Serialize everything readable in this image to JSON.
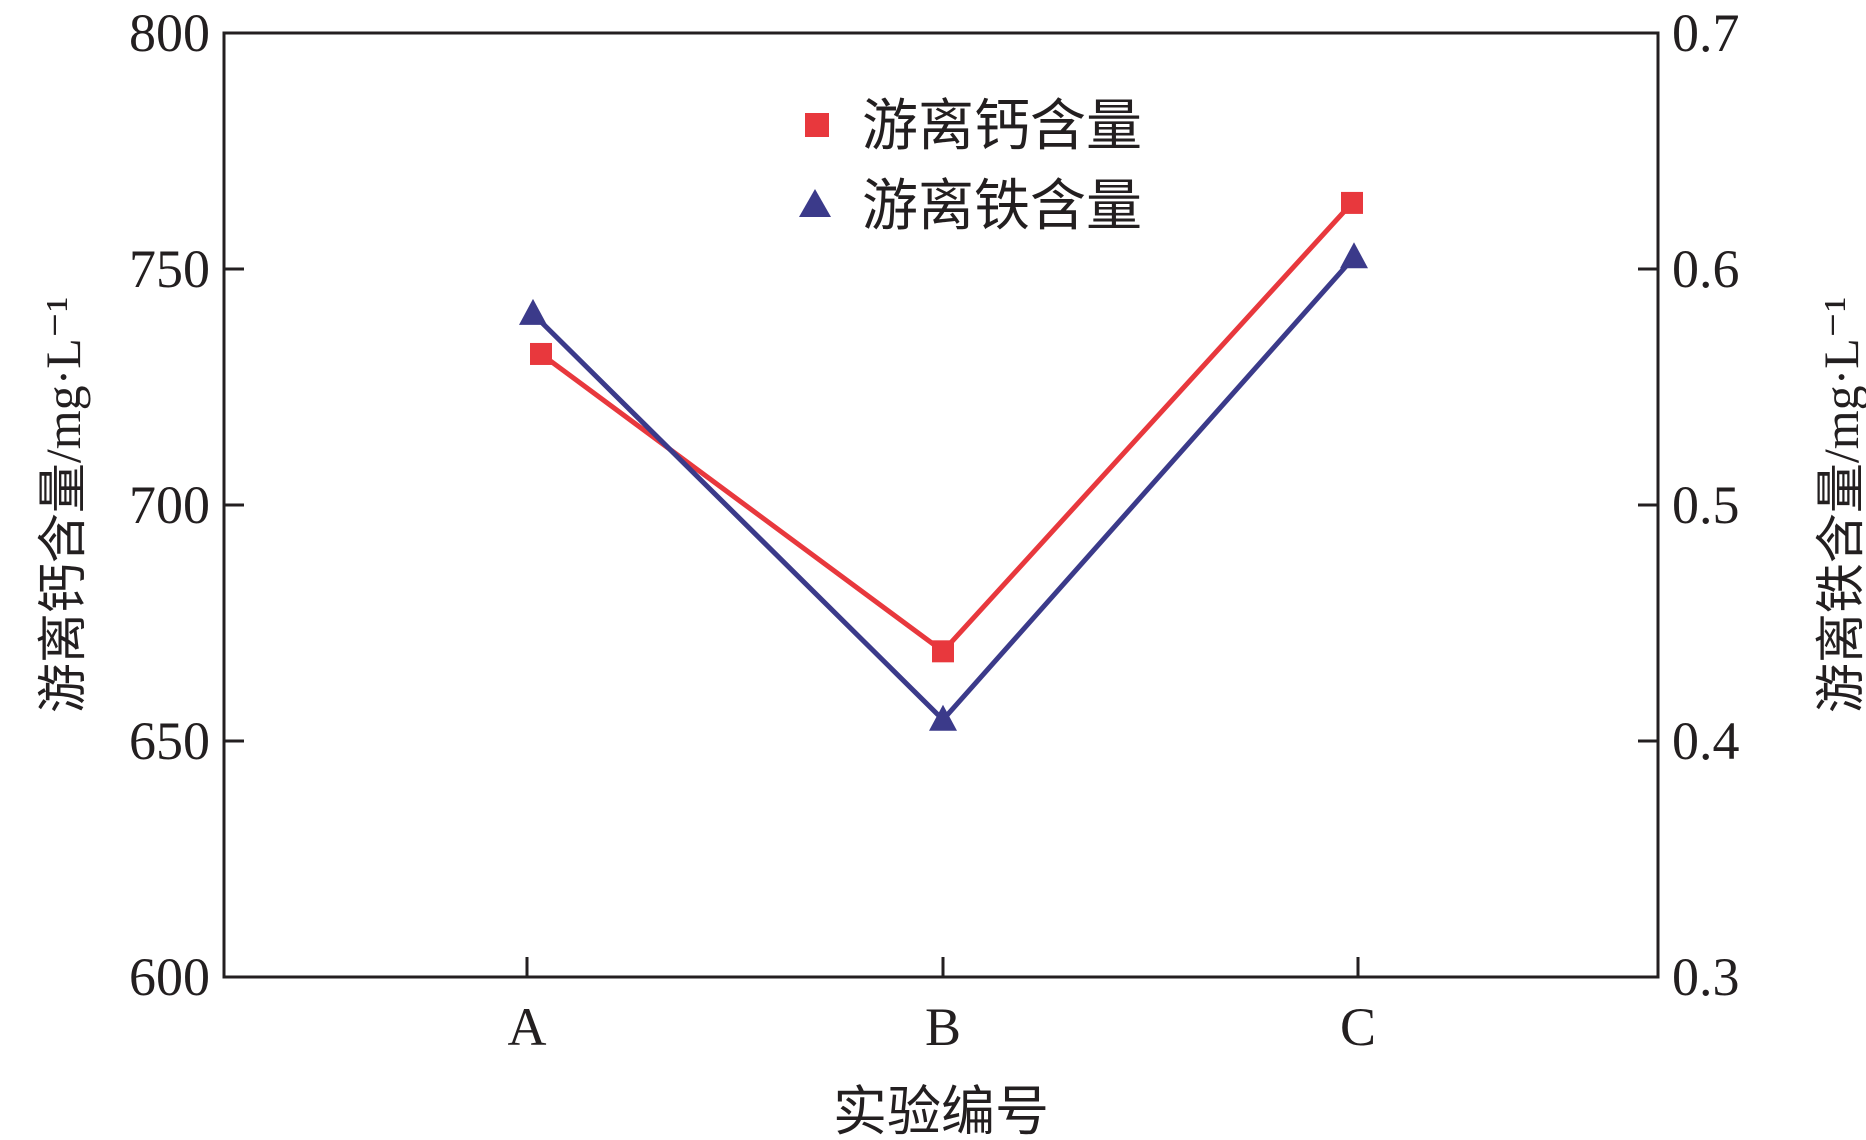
{
  "chart_data": {
    "type": "line",
    "categories": [
      "A",
      "B",
      "C"
    ],
    "xlabel": "实验编号",
    "ylabel_left": "游离钙含量/mg·L⁻¹",
    "ylabel_right": "游离铁含量/mg·L⁻¹",
    "ylim_left": [
      600,
      800
    ],
    "yticks_left": [
      "600",
      "650",
      "700",
      "750",
      "800"
    ],
    "ylim_right": [
      0.3,
      0.7
    ],
    "yticks_right": [
      "0.3",
      "0.4",
      "0.5",
      "0.6",
      "0.7"
    ],
    "grid": false,
    "legend_position": "top-center",
    "series": [
      {
        "name": "游离钙含量",
        "axis": "left",
        "marker": "square",
        "color": "#e8383d",
        "values": [
          732,
          669,
          764
        ]
      },
      {
        "name": "游离铁含量",
        "axis": "right",
        "marker": "triangle",
        "color": "#3b3a8a",
        "values": [
          0.581,
          0.409,
          0.605
        ]
      }
    ]
  }
}
